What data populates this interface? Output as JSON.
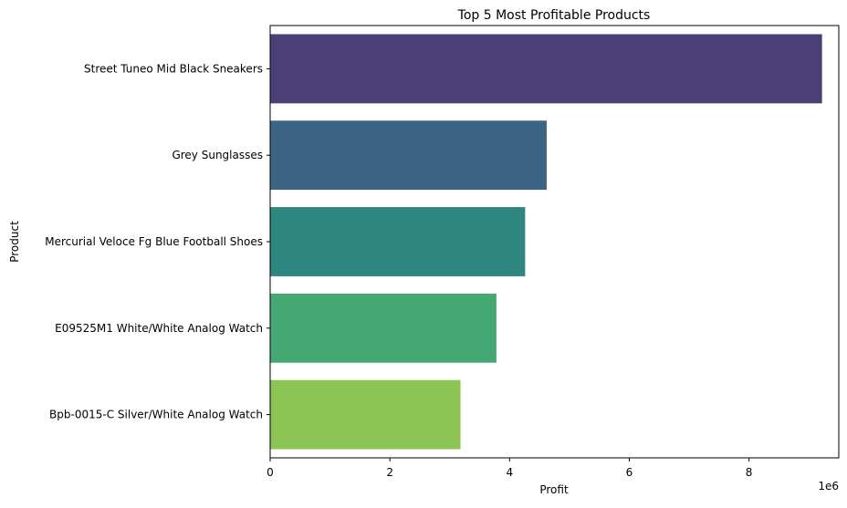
{
  "chart_data": {
    "type": "bar",
    "orientation": "horizontal",
    "title": "Top 5 Most Profitable Products",
    "xlabel": "Profit",
    "ylabel": "Product",
    "x_scale_label": "1e6",
    "xlim": [
      0,
      9.5
    ],
    "x_ticks": [
      0,
      2,
      4,
      6,
      8
    ],
    "x_tick_labels": [
      "0",
      "2",
      "4",
      "6",
      "8"
    ],
    "grid": false,
    "legend": "none",
    "categories": [
      "Street Tuneo Mid Black Sneakers",
      "Grey Sunglasses",
      "Mercurial Veloce Fg Blue Football Shoes",
      "E09525M1 White/White Analog Watch",
      "Bpb-0015-C Silver/White Analog Watch"
    ],
    "values": [
      9.22,
      4.62,
      4.26,
      3.78,
      3.18
    ],
    "colors": [
      "#4b3f77",
      "#3d6583",
      "#2d8680",
      "#45a872",
      "#8dc456"
    ]
  }
}
